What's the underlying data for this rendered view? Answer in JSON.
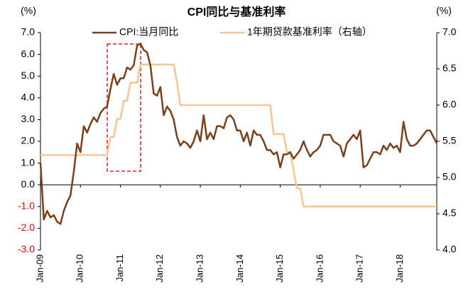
{
  "chart_data": {
    "type": "line",
    "title": "CPI同比与基准利率",
    "y_unit": "(%)",
    "y2_unit": "(%)",
    "categories": [
      "Jan-09",
      null,
      null,
      null,
      null,
      null,
      null,
      null,
      null,
      null,
      null,
      null,
      "Jan-10",
      null,
      null,
      null,
      null,
      null,
      null,
      null,
      null,
      null,
      null,
      null,
      "Jan-11",
      null,
      null,
      null,
      null,
      null,
      null,
      null,
      null,
      null,
      null,
      null,
      "Jan-12",
      null,
      null,
      null,
      null,
      null,
      null,
      null,
      null,
      null,
      null,
      null,
      "Jan-13",
      null,
      null,
      null,
      null,
      null,
      null,
      null,
      null,
      null,
      null,
      null,
      "Jan-14",
      null,
      null,
      null,
      null,
      null,
      null,
      null,
      null,
      null,
      null,
      null,
      "Jan-15",
      null,
      null,
      null,
      null,
      null,
      null,
      null,
      null,
      null,
      null,
      null,
      "Jan-16",
      null,
      null,
      null,
      null,
      null,
      null,
      null,
      null,
      null,
      null,
      null,
      "Jan-17",
      null,
      null,
      null,
      null,
      null,
      null,
      null,
      null,
      null,
      null,
      null,
      "Jan-18",
      null,
      null,
      null,
      null,
      null,
      null,
      null,
      null,
      null,
      null,
      null
    ],
    "series": [
      {
        "name": "CPI:当月同比",
        "color": "#7b3f1c",
        "axis": "y",
        "values": [
          1.0,
          -1.6,
          -1.2,
          -1.5,
          -1.4,
          -1.7,
          -1.8,
          -1.2,
          -0.8,
          -0.5,
          0.6,
          1.9,
          1.5,
          2.7,
          2.4,
          2.8,
          3.1,
          2.9,
          3.3,
          3.5,
          3.6,
          4.4,
          5.1,
          4.6,
          4.9,
          4.9,
          5.4,
          5.3,
          5.5,
          6.4,
          6.5,
          6.2,
          6.1,
          5.5,
          4.2,
          4.1,
          4.5,
          3.2,
          3.6,
          3.4,
          3.0,
          2.2,
          1.8,
          2.0,
          1.9,
          1.7,
          2.0,
          2.5,
          2.0,
          3.2,
          2.1,
          2.4,
          2.1,
          2.7,
          2.7,
          2.6,
          3.1,
          3.2,
          3.0,
          2.5,
          2.5,
          2.0,
          2.4,
          1.8,
          2.5,
          2.3,
          2.3,
          2.0,
          1.6,
          1.6,
          1.4,
          1.5,
          0.8,
          1.4,
          1.4,
          1.5,
          1.2,
          1.4,
          1.6,
          2.0,
          1.6,
          1.3,
          1.5,
          1.6,
          1.8,
          2.3,
          2.3,
          2.3,
          2.0,
          1.9,
          1.8,
          1.3,
          1.9,
          2.1,
          2.3,
          2.1,
          2.5,
          0.8,
          0.9,
          1.2,
          1.5,
          1.5,
          1.4,
          1.8,
          1.6,
          1.9,
          1.7,
          1.8,
          1.5,
          2.9,
          2.1,
          1.8,
          1.8,
          1.9,
          2.1,
          2.3,
          2.5,
          2.5,
          2.2,
          1.9
        ]
      },
      {
        "name": "1年期贷款基准利率（右轴）",
        "color": "#f7c594",
        "axis": "y2",
        "values": [
          5.31,
          5.31,
          5.31,
          5.31,
          5.31,
          5.31,
          5.31,
          5.31,
          5.31,
          5.31,
          5.31,
          5.31,
          5.31,
          5.31,
          5.31,
          5.31,
          5.31,
          5.31,
          5.31,
          5.31,
          5.31,
          5.56,
          5.56,
          5.81,
          5.81,
          6.06,
          6.06,
          6.31,
          6.31,
          6.31,
          6.56,
          6.56,
          6.56,
          6.56,
          6.56,
          6.56,
          6.56,
          6.56,
          6.56,
          6.56,
          6.56,
          6.31,
          6.0,
          6.0,
          6.0,
          6.0,
          6.0,
          6.0,
          6.0,
          6.0,
          6.0,
          6.0,
          6.0,
          6.0,
          6.0,
          6.0,
          6.0,
          6.0,
          6.0,
          6.0,
          6.0,
          6.0,
          6.0,
          6.0,
          6.0,
          6.0,
          6.0,
          6.0,
          6.0,
          6.0,
          5.6,
          5.6,
          5.6,
          5.6,
          5.35,
          5.35,
          5.1,
          4.85,
          4.85,
          4.6,
          4.6,
          4.6,
          4.6,
          4.6,
          4.6,
          4.6,
          4.6,
          4.6,
          4.6,
          4.6,
          4.6,
          4.6,
          4.6,
          4.6,
          4.6,
          4.6,
          4.6,
          4.6,
          4.6,
          4.6,
          4.6,
          4.6,
          4.6,
          4.6,
          4.6,
          4.6,
          4.6,
          4.6,
          4.6,
          4.6,
          4.6,
          4.6,
          4.6,
          4.6,
          4.6,
          4.6,
          4.6,
          4.6,
          4.6,
          4.6
        ]
      }
    ],
    "ylim": [
      -3,
      7
    ],
    "yticks": [
      {
        "value": 7,
        "label": "7.0"
      },
      {
        "value": 6,
        "label": "6.0"
      },
      {
        "value": 5,
        "label": "5.0"
      },
      {
        "value": 4,
        "label": "4.0"
      },
      {
        "value": 3,
        "label": "3.0"
      },
      {
        "value": 2,
        "label": "2.0"
      },
      {
        "value": 1,
        "label": "1.0"
      },
      {
        "value": 0,
        "label": "0.0"
      },
      {
        "value": -1,
        "label": "-1.0"
      },
      {
        "value": -2,
        "label": "-2.0"
      },
      {
        "value": -3,
        "label": "-3.0"
      }
    ],
    "negative_tick_color": "#ff0000",
    "y2lim": [
      4,
      7
    ],
    "y2ticks": [
      {
        "value": 7,
        "label": "7.0"
      },
      {
        "value": 6.5,
        "label": "6.5"
      },
      {
        "value": 6,
        "label": "6.0"
      },
      {
        "value": 5.5,
        "label": "5.5"
      },
      {
        "value": 5,
        "label": "5.0"
      },
      {
        "value": 4.5,
        "label": "4.5"
      },
      {
        "value": 4,
        "label": "4.0"
      }
    ],
    "grid": false,
    "legend": "top"
  }
}
